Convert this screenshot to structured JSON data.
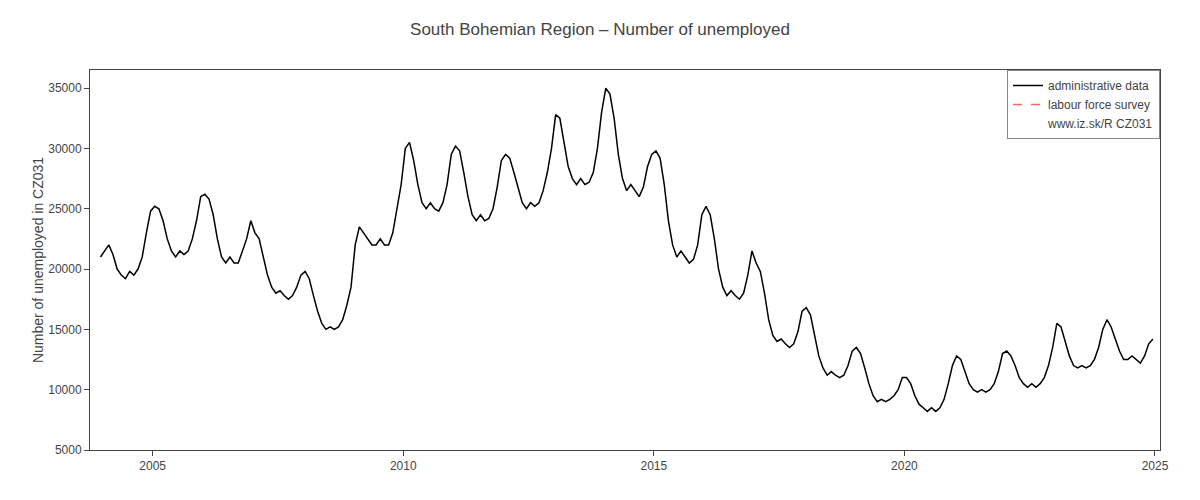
{
  "chart_data": {
    "type": "line",
    "title": "South Bohemian Region – Number of unemployed",
    "y_label": "Number of unemployed in CZ031",
    "xlim": [
      2003.75,
      2025.1
    ],
    "xticks": [
      2005,
      2010,
      2015,
      2020,
      2025
    ],
    "ylim": [
      5000,
      36500
    ],
    "yticks": [
      5000,
      10000,
      15000,
      20000,
      25000,
      30000,
      35000
    ],
    "grid": false,
    "legend": "upper right",
    "annotations": [
      "www.iz.sk/R CZ031"
    ],
    "x": [
      2003.958333,
      2004.041667,
      2004.125,
      2004.208333,
      2004.291667,
      2004.375,
      2004.458333,
      2004.541667,
      2004.625,
      2004.708333,
      2004.791667,
      2004.875,
      2004.958333,
      2005.041667,
      2005.125,
      2005.208333,
      2005.291667,
      2005.375,
      2005.458333,
      2005.541667,
      2005.625,
      2005.708333,
      2005.791667,
      2005.875,
      2005.958333,
      2006.041667,
      2006.125,
      2006.208333,
      2006.291667,
      2006.375,
      2006.458333,
      2006.541667,
      2006.625,
      2006.708333,
      2006.791667,
      2006.875,
      2006.958333,
      2007.041667,
      2007.125,
      2007.208333,
      2007.291667,
      2007.375,
      2007.458333,
      2007.541667,
      2007.625,
      2007.708333,
      2007.791667,
      2007.875,
      2007.958333,
      2008.041667,
      2008.125,
      2008.208333,
      2008.291667,
      2008.375,
      2008.458333,
      2008.541667,
      2008.625,
      2008.708333,
      2008.791667,
      2008.875,
      2008.958333,
      2009.041667,
      2009.125,
      2009.208333,
      2009.291667,
      2009.375,
      2009.458333,
      2009.541667,
      2009.625,
      2009.708333,
      2009.791667,
      2009.875,
      2009.958333,
      2010.041667,
      2010.125,
      2010.208333,
      2010.291667,
      2010.375,
      2010.458333,
      2010.541667,
      2010.625,
      2010.708333,
      2010.791667,
      2010.875,
      2010.958333,
      2011.041667,
      2011.125,
      2011.208333,
      2011.291667,
      2011.375,
      2011.458333,
      2011.541667,
      2011.625,
      2011.708333,
      2011.791667,
      2011.875,
      2011.958333,
      2012.041667,
      2012.125,
      2012.208333,
      2012.291667,
      2012.375,
      2012.458333,
      2012.541667,
      2012.625,
      2012.708333,
      2012.791667,
      2012.875,
      2012.958333,
      2013.041667,
      2013.125,
      2013.208333,
      2013.291667,
      2013.375,
      2013.458333,
      2013.541667,
      2013.625,
      2013.708333,
      2013.791667,
      2013.875,
      2013.958333,
      2014.041667,
      2014.125,
      2014.208333,
      2014.291667,
      2014.375,
      2014.458333,
      2014.541667,
      2014.625,
      2014.708333,
      2014.791667,
      2014.875,
      2014.958333,
      2015.041667,
      2015.125,
      2015.208333,
      2015.291667,
      2015.375,
      2015.458333,
      2015.541667,
      2015.625,
      2015.708333,
      2015.791667,
      2015.875,
      2015.958333,
      2016.041667,
      2016.125,
      2016.208333,
      2016.291667,
      2016.375,
      2016.458333,
      2016.541667,
      2016.625,
      2016.708333,
      2016.791667,
      2016.875,
      2016.958333,
      2017.041667,
      2017.125,
      2017.208333,
      2017.291667,
      2017.375,
      2017.458333,
      2017.541667,
      2017.625,
      2017.708333,
      2017.791667,
      2017.875,
      2017.958333,
      2018.041667,
      2018.125,
      2018.208333,
      2018.291667,
      2018.375,
      2018.458333,
      2018.541667,
      2018.625,
      2018.708333,
      2018.791667,
      2018.875,
      2018.958333,
      2019.041667,
      2019.125,
      2019.208333,
      2019.291667,
      2019.375,
      2019.458333,
      2019.541667,
      2019.625,
      2019.708333,
      2019.791667,
      2019.875,
      2019.958333,
      2020.041667,
      2020.125,
      2020.208333,
      2020.291667,
      2020.375,
      2020.458333,
      2020.541667,
      2020.625,
      2020.708333,
      2020.791667,
      2020.875,
      2020.958333,
      2021.041667,
      2021.125,
      2021.208333,
      2021.291667,
      2021.375,
      2021.458333,
      2021.541667,
      2021.625,
      2021.708333,
      2021.791667,
      2021.875,
      2021.958333,
      2022.041667,
      2022.125,
      2022.208333,
      2022.291667,
      2022.375,
      2022.458333,
      2022.541667,
      2022.625,
      2022.708333,
      2022.791667,
      2022.875,
      2022.958333,
      2023.041667,
      2023.125,
      2023.208333,
      2023.291667,
      2023.375,
      2023.458333,
      2023.541667,
      2023.625,
      2023.708333,
      2023.791667,
      2023.875,
      2023.958333,
      2024.041667,
      2024.125,
      2024.208333,
      2024.291667,
      2024.375,
      2024.458333,
      2024.541667,
      2024.625,
      2024.708333,
      2024.791667,
      2024.875,
      2024.958333
    ],
    "series": [
      {
        "name": "administrative data",
        "color": "#000000",
        "line_style": "solid",
        "values": [
          21000,
          21500,
          22000,
          21200,
          20000,
          19500,
          19200,
          19800,
          19500,
          20000,
          21000,
          23000,
          24800,
          25200,
          25000,
          24000,
          22500,
          21500,
          21000,
          21500,
          21200,
          21500,
          22500,
          24000,
          26000,
          26200,
          25800,
          24500,
          22500,
          21000,
          20500,
          21000,
          20500,
          20500,
          21500,
          22500,
          24000,
          23000,
          22500,
          21000,
          19500,
          18500,
          18000,
          18200,
          17800,
          17500,
          17800,
          18500,
          19500,
          19800,
          19200,
          17800,
          16500,
          15500,
          15000,
          15200,
          15000,
          15200,
          15800,
          17000,
          18500,
          22000,
          23500,
          23000,
          22500,
          22000,
          22000,
          22500,
          22000,
          22000,
          23000,
          25000,
          27000,
          30000,
          30500,
          29000,
          27000,
          25500,
          25000,
          25500,
          25000,
          24800,
          25500,
          27000,
          29500,
          30200,
          29800,
          28000,
          26000,
          24500,
          24000,
          24500,
          24000,
          24200,
          25000,
          26800,
          29000,
          29500,
          29200,
          28000,
          26800,
          25500,
          25000,
          25500,
          25200,
          25500,
          26500,
          28000,
          30000,
          32800,
          32500,
          30500,
          28500,
          27500,
          27000,
          27500,
          27000,
          27200,
          28000,
          30000,
          33000,
          35000,
          34500,
          32500,
          29500,
          27500,
          26500,
          27000,
          26500,
          26000,
          26800,
          28500,
          29500,
          29800,
          29200,
          27000,
          24000,
          22000,
          21000,
          21500,
          21000,
          20500,
          20800,
          22000,
          24500,
          25200,
          24500,
          22500,
          20000,
          18500,
          17800,
          18200,
          17800,
          17500,
          18000,
          19500,
          21500,
          20500,
          19800,
          18000,
          15800,
          14500,
          14000,
          14200,
          13800,
          13500,
          13800,
          14800,
          16500,
          16800,
          16200,
          14500,
          12800,
          11800,
          11200,
          11500,
          11200,
          11000,
          11200,
          12000,
          13200,
          13500,
          13000,
          11800,
          10500,
          9500,
          9000,
          9200,
          9000,
          9200,
          9500,
          10000,
          11000,
          11000,
          10500,
          9500,
          8800,
          8500,
          8200,
          8500,
          8200,
          8500,
          9200,
          10500,
          12000,
          12800,
          12500,
          11500,
          10500,
          10000,
          9800,
          10000,
          9800,
          10000,
          10500,
          11500,
          13000,
          13200,
          12800,
          12000,
          11000,
          10500,
          10200,
          10500,
          10200,
          10500,
          11000,
          12000,
          13500,
          15500,
          15200,
          14000,
          12800,
          12000,
          11800,
          12000,
          11800,
          12000,
          12500,
          13500,
          15000,
          15800,
          15200,
          14200,
          13200,
          12500,
          12500,
          12800,
          12500,
          12200,
          12800,
          13800,
          14200
        ]
      },
      {
        "name": "labour force survey",
        "color": "#FF6666",
        "line_style": "dashed",
        "values": [
          null,
          null,
          null,
          null,
          null,
          null,
          null,
          null,
          null,
          null,
          null,
          null,
          null,
          null,
          null,
          null,
          null,
          null,
          null,
          null,
          null,
          null,
          null,
          null,
          null,
          null,
          null,
          null,
          null,
          null,
          null,
          null,
          null,
          null,
          null,
          null,
          null,
          null,
          null,
          null,
          null,
          null,
          null,
          null,
          null,
          null,
          null,
          null,
          null,
          null,
          null,
          null,
          null,
          null,
          null,
          null,
          null,
          null,
          null,
          null,
          null,
          null,
          null,
          null,
          null,
          null,
          null,
          null,
          null,
          null,
          null,
          null,
          null,
          null,
          null,
          null,
          null,
          null,
          null,
          null,
          null,
          null,
          null,
          null,
          null,
          null,
          null,
          null,
          null,
          null,
          null,
          null,
          null,
          null,
          null,
          null,
          null,
          null,
          null,
          null,
          null,
          null,
          null,
          null,
          null,
          null,
          null,
          null,
          null,
          null,
          null,
          null,
          null,
          null,
          null,
          null,
          null,
          null,
          null,
          null,
          null,
          null,
          null,
          null,
          null,
          null,
          null,
          null,
          null,
          null,
          null,
          null,
          null,
          null,
          null,
          null,
          null,
          null,
          null,
          null,
          null,
          null,
          null,
          null,
          null,
          null,
          null,
          null,
          null,
          null,
          null,
          null,
          null,
          null,
          null,
          null,
          null,
          null,
          null,
          null,
          null,
          null,
          null,
          null,
          null,
          null,
          null,
          null,
          null,
          null,
          null,
          null,
          null,
          null,
          null,
          null,
          null,
          null,
          null,
          null,
          null,
          null,
          null,
          null,
          null,
          null,
          null,
          null,
          null,
          null,
          null,
          null,
          null,
          null,
          null,
          null,
          null,
          null,
          null,
          null,
          null,
          null,
          null,
          null,
          null,
          null,
          null,
          null,
          null,
          null,
          null,
          null,
          null,
          null,
          null,
          null,
          null,
          null,
          null,
          null,
          null,
          null,
          null,
          null,
          null,
          null,
          null,
          null,
          null,
          null,
          null,
          null,
          null,
          null,
          null,
          null,
          null,
          null,
          null,
          null,
          null,
          null,
          null,
          null,
          null,
          null,
          null,
          null,
          null,
          null,
          null,
          null,
          null
        ]
      }
    ]
  }
}
